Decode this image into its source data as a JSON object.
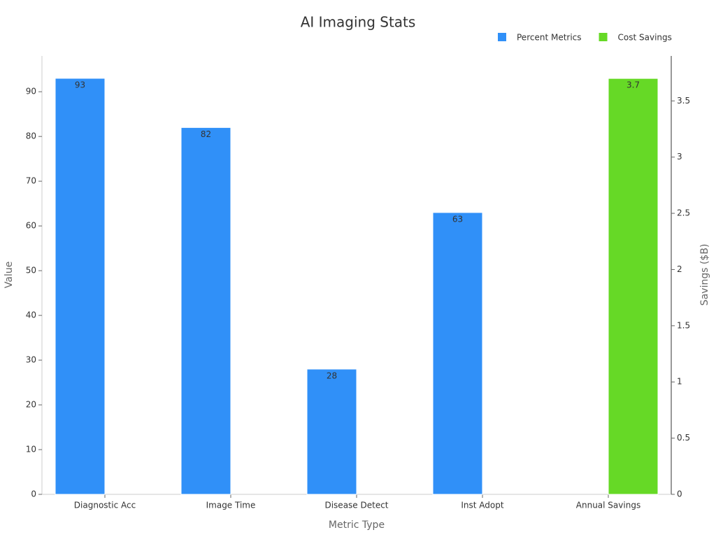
{
  "chart_data": {
    "type": "bar",
    "title": "AI Imaging Stats",
    "x_label": "Metric Type",
    "y_label": "Value",
    "y2_label": "Savings ($B)",
    "categories": [
      "Diagnostic Acc",
      "Image Time",
      "Disease Detect",
      "Inst Adopt",
      "Annual Savings"
    ],
    "series": [
      {
        "name": "Percent Metrics",
        "color": "#3090f8",
        "values": [
          93,
          82,
          28,
          63,
          null
        ]
      },
      {
        "name": "Cost Savings",
        "color": "#66d926",
        "axis": "y2",
        "values": [
          null,
          null,
          null,
          null,
          3.7
        ]
      }
    ],
    "ylim": [
      0,
      98
    ],
    "yticks": [
      0,
      10,
      20,
      30,
      40,
      50,
      60,
      70,
      80,
      90
    ],
    "y2lim": [
      0,
      3.9
    ],
    "y2ticks": [
      0,
      0.5,
      1,
      1.5,
      2,
      2.5,
      3,
      3.5
    ],
    "grid": false,
    "legend": "top-right",
    "data_labels": true
  }
}
